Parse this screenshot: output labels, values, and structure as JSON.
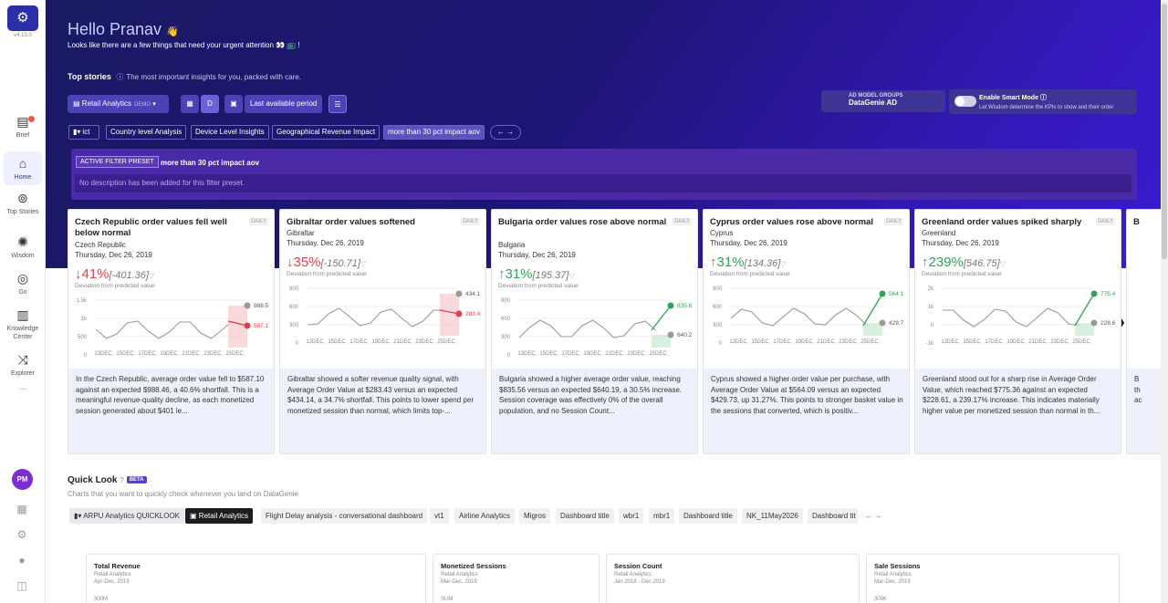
{
  "app": {
    "version": "v4.15.0"
  },
  "sidebar": {
    "items": [
      {
        "label": "Brief",
        "icon": "document-icon"
      },
      {
        "label": "Home",
        "icon": "home-icon"
      },
      {
        "label": "Top Stories",
        "icon": "search-icon"
      },
      {
        "label": "Wisdom",
        "icon": "brain-icon"
      },
      {
        "label": "Go",
        "icon": "compass-icon"
      },
      {
        "label": "Knowledge Center",
        "icon": "building-icon"
      },
      {
        "label": "Explorer",
        "icon": "shuffle-icon"
      }
    ],
    "more": "...",
    "avatar": "PM"
  },
  "hero": {
    "greeting": "Hello Pranav",
    "attention": "Looks like there are a few things that need your urgent attention 👀 📺 !",
    "top_stories": "Top stories",
    "top_stories_sub": "The most important insights for you, packed with care.",
    "dashboard": "Retail Analytics",
    "dashboard_tag": "DEMO",
    "view_d": "D",
    "period": "Last available period",
    "ad_model_label": "AD MODEL GROUPS",
    "ad_model_value": "DataGenie AD",
    "smart_mode": "Enable Smart Mode",
    "smart_mode_sub": "Let Wisdom determine the KPIs to show and their order",
    "filters": [
      "ict",
      "Country level Analysis",
      "Device Level Insights",
      "Geographical Revenue Impact",
      "more than 30 pct impact aov"
    ],
    "active_filter_label": "ACTIVE FILTER PRESET",
    "active_filter_name": "more than 30 pct impact aov",
    "filter_desc": "No description has been added for this filter preset."
  },
  "cards": [
    {
      "title": "Czech Republic order values fell well below normal",
      "tag": "DAILY",
      "region": "Czech Republic",
      "date": "Thursday, Dec 26, 2019",
      "pct": "41%",
      "abs": "[-401.36]",
      "dir": "down",
      "dev": "Deviation from predicted value",
      "yticks": [
        "1.5k",
        "1k",
        "500",
        "0"
      ],
      "xticks": [
        "13DEC",
        "15DEC",
        "17DEC",
        "19DEC",
        "21DEC",
        "23DEC",
        "25DEC"
      ],
      "expected": "988.5",
      "actual": "587.1",
      "summary": "In the Czech Republic, average order value fell to $587.10 against an expected $988.46, a 40.6% shortfall. This is a meaningful revenue-quality decline, as each monetized session generated about $401 le..."
    },
    {
      "title": "Gibraltar order values softened",
      "tag": "DAILY",
      "region": "Gibraltar",
      "date": "Thursday, Dec 26, 2019",
      "pct": "35%",
      "abs": "[-150.71]",
      "dir": "down",
      "dev": "Deviation from predicted value",
      "yticks": [
        "900",
        "600",
        "300",
        "0"
      ],
      "xticks": [
        "13DEC",
        "15DEC",
        "17DEC",
        "19DEC",
        "21DEC",
        "23DEC",
        "25DEC"
      ],
      "expected": "434.1",
      "actual": "283.4",
      "summary": "Gibraltar showed a softer revenue quality signal, with Average Order Value at $283.43 versus an expected $434.14, a 34.7% shortfall. This points to lower spend per monetized session than normal, which limits top-..."
    },
    {
      "title": "Bulgaria order values rose above normal",
      "tag": "DAILY",
      "region": "Bulgaria",
      "date": "Thursday, Dec 26, 2019",
      "pct": "31%",
      "abs": "[195.37]",
      "dir": "up",
      "dev": "Deviation from predicted value",
      "yticks": [
        "900",
        "600",
        "300",
        "0"
      ],
      "xticks": [
        "13DEC",
        "15DEC",
        "17DEC",
        "19DEC",
        "21DEC",
        "23DEC",
        "25DEC"
      ],
      "expected": "640.2",
      "actual": "835.6",
      "summary": "Bulgaria showed a higher average order value, reaching $835.56 versus an expected $640.19, a 30.5% increase. Session coverage was effectively 0% of the overall population, and no Session Count..."
    },
    {
      "title": "Cyprus order values rose above normal",
      "tag": "DAILY",
      "region": "Cyprus",
      "date": "Thursday, Dec 26, 2019",
      "pct": "31%",
      "abs": "[134.36]",
      "dir": "up",
      "dev": "Deviation from predicted value",
      "yticks": [
        "900",
        "600",
        "300",
        "0"
      ],
      "xticks": [
        "13DEC",
        "15DEC",
        "17DEC",
        "19DEC",
        "21DEC",
        "23DEC",
        "25DEC"
      ],
      "expected": "429.7",
      "actual": "564.1",
      "summary": "Cyprus showed a higher order value per purchase, with Average Order Value at $564.09 versus an expected $429.73, up 31.27%. This points to stronger basket value in the sessions that converted, which is positiv..."
    },
    {
      "title": "Greenland order values spiked sharply",
      "tag": "DAILY",
      "region": "Greenland",
      "date": "Thursday, Dec 26, 2019",
      "pct": "239%",
      "abs": "[546.75]",
      "dir": "up",
      "dev": "Deviation from predicted value",
      "yticks": [
        "2k",
        "1k",
        "0",
        "-1k"
      ],
      "xticks": [
        "13DEC",
        "15DEC",
        "17DEC",
        "19DEC",
        "21DEC",
        "23DEC",
        "25DEC"
      ],
      "expected": "228.6",
      "actual": "775.4",
      "summary": "Greenland stood out for a sharp rise in Average Order Value, which reached $775.36 against an expected $228.61, a 239.17% increase. This indicates materially higher value per monetized session than normal in th..."
    }
  ],
  "quick_look": {
    "title": "Quick Look",
    "badge": "BETA",
    "subtitle": "Charts that you want to quickly check whenever you land on DataGenie",
    "tabs": [
      "ARPU Analytics QUICKLOOK",
      "Retail Analytics",
      "Flight Delay analysis - conversational dashboard",
      "vt1",
      "Airline Analytics",
      "Migros",
      "Dashboard title",
      "wbr1",
      "mbr1",
      "Dashboard title",
      "NK_11May2026",
      "Dashboard tit"
    ],
    "widgets": [
      {
        "title": "Total Revenue",
        "source": "Retail Analytics",
        "range": "Apr-Dec, 2019",
        "value": "300M"
      },
      {
        "title": "Monetized Sessions",
        "source": "Retail Analytics",
        "range": "Mar-Dec, 2019",
        "value": "SUM"
      },
      {
        "title": "Session Count",
        "source": "Retail Analytics",
        "range": "Jan 2018 - Dec 2019",
        "value": ""
      },
      {
        "title": "Sale Sessions",
        "source": "Retail Analytics",
        "range": "Mar-Dec, 2019",
        "value": "300K"
      }
    ]
  },
  "colors": {
    "hero_start": "#1a1a63",
    "hero_end": "#3a1ad0",
    "up": "#2fa35a",
    "down": "#e0404a",
    "accent": "#2a2fa8"
  }
}
